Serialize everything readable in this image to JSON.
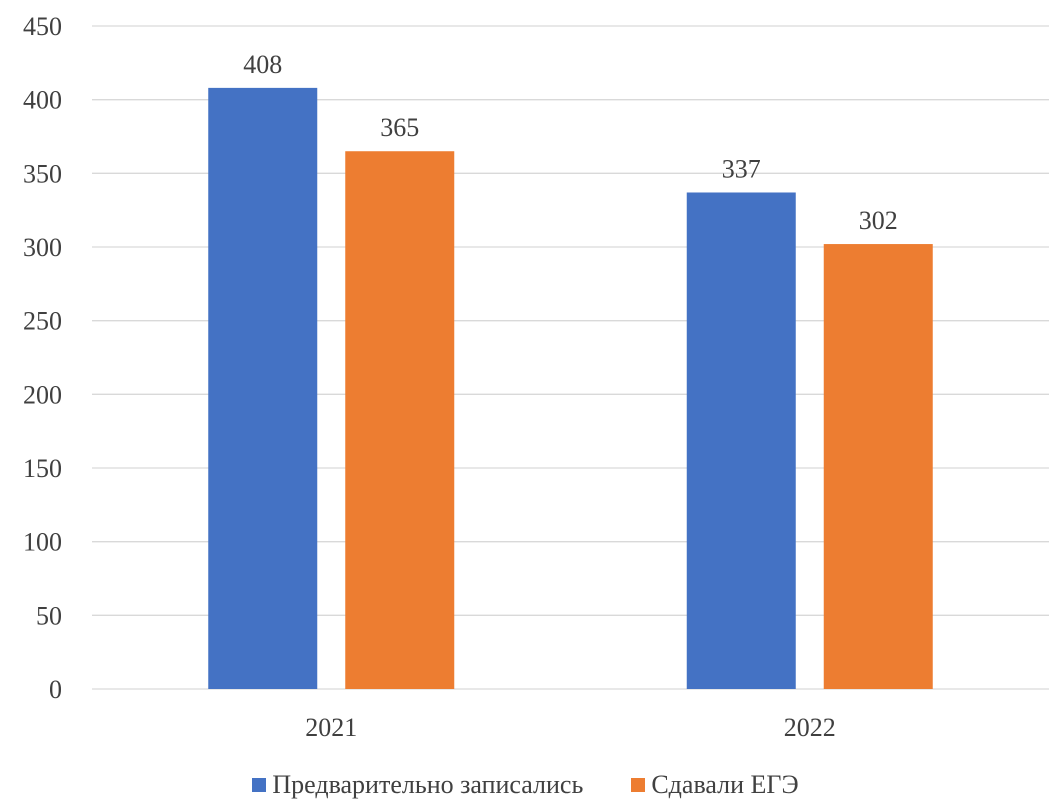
{
  "chart_data": {
    "type": "bar",
    "categories": [
      "2021",
      "2022"
    ],
    "series": [
      {
        "name": "Предварительно записались",
        "values": [
          408,
          337
        ],
        "color": "#4472C4"
      },
      {
        "name": "Сдавали ЕГЭ",
        "values": [
          365,
          302
        ],
        "color": "#ED7D31"
      }
    ],
    "ylim": [
      0,
      450
    ],
    "yticks": [
      0,
      50,
      100,
      150,
      200,
      250,
      300,
      350,
      400,
      450
    ],
    "grid": true,
    "legend_position": "bottom",
    "title": "",
    "xlabel": "",
    "ylabel": ""
  }
}
